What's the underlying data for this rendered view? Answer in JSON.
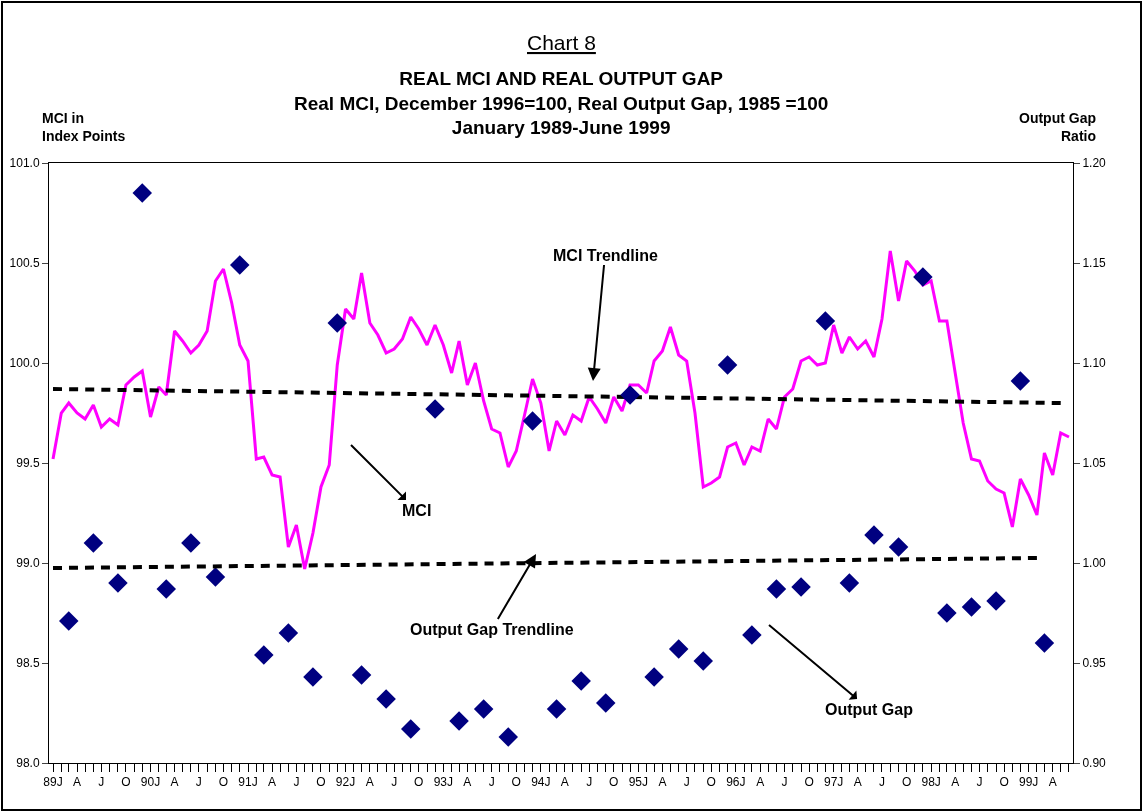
{
  "chart_data": {
    "type": "line",
    "title": "Chart 8",
    "subtitle": "REAL MCI AND REAL OUTPUT GAP\nReal MCI, December 1996=100, Real Output Gap, 1985 =100\nJanuary 1989-June 1999",
    "ylabel": "MCI in\nIndex Points",
    "y2label": "Output Gap\nRatio",
    "x": [
      "1989-01",
      "1989-02",
      "1989-03",
      "1989-04",
      "1989-05",
      "1989-06",
      "1989-07",
      "1989-08",
      "1989-09",
      "1989-10",
      "1989-11",
      "1989-12",
      "1990-01",
      "1990-02",
      "1990-03",
      "1990-04",
      "1990-05",
      "1990-06",
      "1990-07",
      "1990-08",
      "1990-09",
      "1990-10",
      "1990-11",
      "1990-12",
      "1991-01",
      "1991-02",
      "1991-03",
      "1991-04",
      "1991-05",
      "1991-06",
      "1991-07",
      "1991-08",
      "1991-09",
      "1991-10",
      "1991-11",
      "1991-12",
      "1992-01",
      "1992-02",
      "1992-03",
      "1992-04",
      "1992-05",
      "1992-06",
      "1992-07",
      "1992-08",
      "1992-09",
      "1992-10",
      "1992-11",
      "1992-12",
      "1993-01",
      "1993-02",
      "1993-03",
      "1993-04",
      "1993-05",
      "1993-06",
      "1993-07",
      "1993-08",
      "1993-09",
      "1993-10",
      "1993-11",
      "1993-12",
      "1994-01",
      "1994-02",
      "1994-03",
      "1994-04",
      "1994-05",
      "1994-06",
      "1994-07",
      "1994-08",
      "1994-09",
      "1994-10",
      "1994-11",
      "1994-12",
      "1995-01",
      "1995-02",
      "1995-03",
      "1995-04",
      "1995-05",
      "1995-06",
      "1995-07",
      "1995-08",
      "1995-09",
      "1995-10",
      "1995-11",
      "1995-12",
      "1996-01",
      "1996-02",
      "1996-03",
      "1996-04",
      "1996-05",
      "1996-06",
      "1996-07",
      "1996-08",
      "1996-09",
      "1996-10",
      "1996-11",
      "1996-12",
      "1997-01",
      "1997-02",
      "1997-03",
      "1997-04",
      "1997-05",
      "1997-06",
      "1997-07",
      "1997-08",
      "1997-09",
      "1997-10",
      "1997-11",
      "1997-12",
      "1998-01",
      "1998-02",
      "1998-03",
      "1998-04",
      "1998-05",
      "1998-06",
      "1998-07",
      "1998-08",
      "1998-09",
      "1998-10",
      "1998-11",
      "1998-12",
      "1999-01",
      "1999-02",
      "1999-03",
      "1999-04",
      "1999-05",
      "1999-06"
    ],
    "series": [
      {
        "color": "#ff00ff",
        "values": [
          99.52,
          99.75,
          99.8,
          99.75,
          99.72,
          99.79,
          99.68,
          99.72,
          99.69,
          99.89,
          99.93,
          99.96,
          99.73,
          99.88,
          99.84,
          100.16,
          100.11,
          100.05,
          100.09,
          100.16,
          100.41,
          100.47,
          100.3,
          100.09,
          100.01,
          99.52,
          99.53,
          99.44,
          99.43,
          99.08,
          99.19,
          98.97,
          99.15,
          99.38,
          99.49,
          99.99,
          100.27,
          100.22,
          100.45,
          100.2,
          100.14,
          100.05,
          100.07,
          100.12,
          100.23,
          100.17,
          100.09,
          100.19,
          100.09,
          99.95,
          100.11,
          99.89,
          100.0,
          99.81,
          99.67,
          99.65,
          99.48,
          99.56,
          99.74,
          99.92,
          99.8,
          99.56,
          99.71,
          99.64,
          99.74,
          99.71,
          99.83,
          99.77,
          99.7,
          99.83,
          99.76,
          99.89,
          99.89,
          99.85,
          100.01,
          100.06,
          100.18,
          100.04,
          100.01,
          99.75,
          99.38,
          99.4,
          99.43,
          99.58,
          99.6,
          99.49,
          99.58,
          99.56,
          99.72,
          99.67,
          99.83,
          99.87,
          100.01,
          100.03,
          99.99,
          100.0,
          100.19,
          100.05,
          100.13,
          100.07,
          100.11,
          100.03,
          100.22,
          100.56,
          100.31,
          100.51,
          100.46,
          100.39,
          100.41,
          100.21,
          100.21,
          99.95,
          99.7,
          99.52,
          99.51,
          99.41,
          99.37,
          99.35,
          99.18,
          99.42,
          99.34,
          99.24,
          99.55,
          99.44,
          99.65,
          99.63
        ]
      },
      {
        "type": "scatter",
        "color": "#000080",
        "marker": "diamond",
        "axis": "y2",
        "x": [
          "1989-03",
          "1989-06",
          "1989-09",
          "1989-12",
          "1990-03",
          "1990-06",
          "1990-09",
          "1990-12",
          "1991-03",
          "1991-06",
          "1991-09",
          "1991-12",
          "1992-03",
          "1992-06",
          "1992-09",
          "1992-12",
          "1993-03",
          "1993-06",
          "1993-09",
          "1993-12",
          "1994-03",
          "1994-06",
          "1994-09",
          "1994-12",
          "1995-03",
          "1995-06",
          "1995-09",
          "1995-12",
          "1996-03",
          "1996-06",
          "1996-09",
          "1996-12",
          "1997-03",
          "1997-06",
          "1997-09",
          "1997-12",
          "1998-03",
          "1998-06",
          "1998-09",
          "1998-12",
          "1999-03"
        ],
        "values": [
          0.971,
          1.01,
          0.99,
          1.185,
          0.987,
          1.01,
          0.993,
          1.149,
          0.954,
          0.965,
          0.943,
          1.12,
          0.944,
          0.932,
          0.917,
          1.077,
          0.921,
          0.927,
          0.913,
          1.071,
          0.927,
          0.941,
          0.93,
          1.084,
          0.943,
          0.957,
          0.951,
          1.099,
          0.964,
          0.987,
          0.988,
          1.121,
          0.99,
          1.014,
          1.008,
          1.143,
          0.975,
          0.978,
          0.981,
          1.091,
          0.96
        ]
      },
      {
        "type": "line",
        "color": "#000000",
        "line_style": "dashed",
        "x": [
          "1989-01",
          "1999-05"
        ],
        "values": [
          99.87,
          99.8
        ]
      },
      {
        "type": "line",
        "color": "#000000",
        "line_style": "dashed",
        "axis": "y2",
        "x": [
          "1989-01",
          "1999-02"
        ],
        "values": [
          0.9975,
          1.0025
        ]
      }
    ],
    "xlim": [
      "1988-12-17",
      "1999-06-16"
    ],
    "xticks": [
      {
        "value": "1989-01",
        "label": "89J"
      },
      {
        "value": "1989-02",
        "label": null
      },
      {
        "value": "1989-03",
        "label": null
      },
      {
        "value": "1989-04",
        "label": "A"
      },
      {
        "value": "1989-05",
        "label": null
      },
      {
        "value": "1989-06",
        "label": null
      },
      {
        "value": "1989-07",
        "label": "J"
      },
      {
        "value": "1989-08",
        "label": null
      },
      {
        "value": "1989-09",
        "label": null
      },
      {
        "value": "1989-10",
        "label": "O"
      },
      {
        "value": "1989-11",
        "label": null
      },
      {
        "value": "1989-12",
        "label": null
      },
      {
        "value": "1990-01",
        "label": "90J"
      },
      {
        "value": "1990-02",
        "label": null
      },
      {
        "value": "1990-03",
        "label": null
      },
      {
        "value": "1990-04",
        "label": "A"
      },
      {
        "value": "1990-05",
        "label": null
      },
      {
        "value": "1990-06",
        "label": null
      },
      {
        "value": "1990-07",
        "label": "J"
      },
      {
        "value": "1990-08",
        "label": null
      },
      {
        "value": "1990-09",
        "label": null
      },
      {
        "value": "1990-10",
        "label": "O"
      },
      {
        "value": "1990-11",
        "label": null
      },
      {
        "value": "1990-12",
        "label": null
      },
      {
        "value": "1991-01",
        "label": "91J"
      },
      {
        "value": "1991-02",
        "label": null
      },
      {
        "value": "1991-03",
        "label": null
      },
      {
        "value": "1991-04",
        "label": "A"
      },
      {
        "value": "1991-05",
        "label": null
      },
      {
        "value": "1991-06",
        "label": null
      },
      {
        "value": "1991-07",
        "label": "J"
      },
      {
        "value": "1991-08",
        "label": null
      },
      {
        "value": "1991-09",
        "label": null
      },
      {
        "value": "1991-10",
        "label": "O"
      },
      {
        "value": "1991-11",
        "label": null
      },
      {
        "value": "1991-12",
        "label": null
      },
      {
        "value": "1992-01",
        "label": "92J"
      },
      {
        "value": "1992-02",
        "label": null
      },
      {
        "value": "1992-03",
        "label": null
      },
      {
        "value": "1992-04",
        "label": "A"
      },
      {
        "value": "1992-05",
        "label": null
      },
      {
        "value": "1992-06",
        "label": null
      },
      {
        "value": "1992-07",
        "label": "J"
      },
      {
        "value": "1992-08",
        "label": null
      },
      {
        "value": "1992-09",
        "label": null
      },
      {
        "value": "1992-10",
        "label": "O"
      },
      {
        "value": "1992-11",
        "label": null
      },
      {
        "value": "1992-12",
        "label": null
      },
      {
        "value": "1993-01",
        "label": "93J"
      },
      {
        "value": "1993-02",
        "label": null
      },
      {
        "value": "1993-03",
        "label": null
      },
      {
        "value": "1993-04",
        "label": "A"
      },
      {
        "value": "1993-05",
        "label": null
      },
      {
        "value": "1993-06",
        "label": null
      },
      {
        "value": "1993-07",
        "label": "J"
      },
      {
        "value": "1993-08",
        "label": null
      },
      {
        "value": "1993-09",
        "label": null
      },
      {
        "value": "1993-10",
        "label": "O"
      },
      {
        "value": "1993-11",
        "label": null
      },
      {
        "value": "1993-12",
        "label": null
      },
      {
        "value": "1994-01",
        "label": "94J"
      },
      {
        "value": "1994-02",
        "label": null
      },
      {
        "value": "1994-03",
        "label": null
      },
      {
        "value": "1994-04",
        "label": "A"
      },
      {
        "value": "1994-05",
        "label": null
      },
      {
        "value": "1994-06",
        "label": null
      },
      {
        "value": "1994-07",
        "label": "J"
      },
      {
        "value": "1994-08",
        "label": null
      },
      {
        "value": "1994-09",
        "label": null
      },
      {
        "value": "1994-10",
        "label": "O"
      },
      {
        "value": "1994-11",
        "label": null
      },
      {
        "value": "1994-12",
        "label": null
      },
      {
        "value": "1995-01",
        "label": "95J"
      },
      {
        "value": "1995-02",
        "label": null
      },
      {
        "value": "1995-03",
        "label": null
      },
      {
        "value": "1995-04",
        "label": "A"
      },
      {
        "value": "1995-05",
        "label": null
      },
      {
        "value": "1995-06",
        "label": null
      },
      {
        "value": "1995-07",
        "label": "J"
      },
      {
        "value": "1995-08",
        "label": null
      },
      {
        "value": "1995-09",
        "label": null
      },
      {
        "value": "1995-10",
        "label": "O"
      },
      {
        "value": "1995-11",
        "label": null
      },
      {
        "value": "1995-12",
        "label": null
      },
      {
        "value": "1996-01",
        "label": "96J"
      },
      {
        "value": "1996-02",
        "label": null
      },
      {
        "value": "1996-03",
        "label": null
      },
      {
        "value": "1996-04",
        "label": "A"
      },
      {
        "value": "1996-05",
        "label": null
      },
      {
        "value": "1996-06",
        "label": null
      },
      {
        "value": "1996-07",
        "label": "J"
      },
      {
        "value": "1996-08",
        "label": null
      },
      {
        "value": "1996-09",
        "label": null
      },
      {
        "value": "1996-10",
        "label": "O"
      },
      {
        "value": "1996-11",
        "label": null
      },
      {
        "value": "1996-12",
        "label": null
      },
      {
        "value": "1997-01",
        "label": "97J"
      },
      {
        "value": "1997-02",
        "label": null
      },
      {
        "value": "1997-03",
        "label": null
      },
      {
        "value": "1997-04",
        "label": "A"
      },
      {
        "value": "1997-05",
        "label": null
      },
      {
        "value": "1997-06",
        "label": null
      },
      {
        "value": "1997-07",
        "label": "J"
      },
      {
        "value": "1997-08",
        "label": null
      },
      {
        "value": "1997-09",
        "label": null
      },
      {
        "value": "1997-10",
        "label": "O"
      },
      {
        "value": "1997-11",
        "label": null
      },
      {
        "value": "1997-12",
        "label": null
      },
      {
        "value": "1998-01",
        "label": "98J"
      },
      {
        "value": "1998-02",
        "label": null
      },
      {
        "value": "1998-03",
        "label": null
      },
      {
        "value": "1998-04",
        "label": "A"
      },
      {
        "value": "1998-05",
        "label": null
      },
      {
        "value": "1998-06",
        "label": null
      },
      {
        "value": "1998-07",
        "label": "J"
      },
      {
        "value": "1998-08",
        "label": null
      },
      {
        "value": "1998-09",
        "label": null
      },
      {
        "value": "1998-10",
        "label": "O"
      },
      {
        "value": "1998-11",
        "label": null
      },
      {
        "value": "1998-12",
        "label": null
      },
      {
        "value": "1999-01",
        "label": "99J"
      },
      {
        "value": "1999-02",
        "label": null
      },
      {
        "value": "1999-03",
        "label": null
      },
      {
        "value": "1999-04",
        "label": "A"
      },
      {
        "value": "1999-05",
        "label": null
      },
      {
        "value": "1999-06",
        "label": null
      }
    ],
    "ylim": [
      98.0,
      101.0
    ],
    "yticks": [
      {
        "value": 98.0,
        "label": "98.0"
      },
      {
        "value": 98.5,
        "label": "98.5"
      },
      {
        "value": 99.0,
        "label": "99.0"
      },
      {
        "value": 99.5,
        "label": "99.5"
      },
      {
        "value": 100.0,
        "label": "100.0"
      },
      {
        "value": 100.5,
        "label": "100.5"
      },
      {
        "value": 101.0,
        "label": "101.0"
      }
    ],
    "y2lim": [
      0.9,
      1.2
    ],
    "y2ticks": [
      {
        "value": 0.9,
        "label": "0.90"
      },
      {
        "value": 0.95,
        "label": "0.95"
      },
      {
        "value": 1.0,
        "label": "1.00"
      },
      {
        "value": 1.05,
        "label": "1.05"
      },
      {
        "value": 1.1,
        "label": "1.10"
      },
      {
        "value": 1.15,
        "label": "1.15"
      },
      {
        "value": 1.2,
        "label": "1.20"
      }
    ],
    "annotations": [
      "MCI Trendline",
      "MCI",
      "Output Gap Trendline",
      "Output Gap"
    ]
  }
}
